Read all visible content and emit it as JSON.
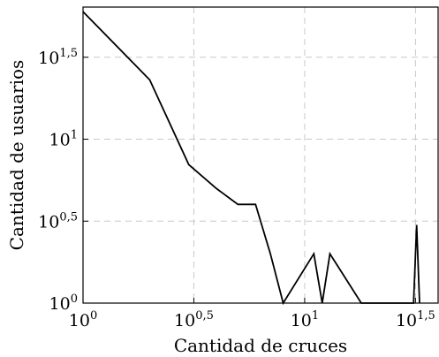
{
  "chart_data": {
    "type": "line",
    "xlabel": "Cantidad de cruces",
    "ylabel": "Cantidad de usuarios",
    "xscale": "log",
    "yscale": "log",
    "xlim": [
      1,
      40
    ],
    "ylim": [
      1,
      64
    ],
    "grid": true,
    "x_ticks": [
      {
        "value": 1,
        "base": "10",
        "exp": "0"
      },
      {
        "value": 3.162,
        "base": "10",
        "exp": "0,5"
      },
      {
        "value": 10,
        "base": "10",
        "exp": "1"
      },
      {
        "value": 31.62,
        "base": "10",
        "exp": "1,5"
      }
    ],
    "y_ticks": [
      {
        "value": 1,
        "base": "10",
        "exp": "0"
      },
      {
        "value": 3.162,
        "base": "10",
        "exp": "0,5"
      },
      {
        "value": 10,
        "base": "10",
        "exp": "1"
      },
      {
        "value": 31.62,
        "base": "10",
        "exp": "1,5"
      }
    ],
    "series": [
      {
        "color": "#000000",
        "x": [
          1,
          2,
          3,
          4,
          5,
          6,
          7,
          8,
          11,
          12,
          13,
          18,
          31,
          32,
          33
        ],
        "y": [
          60,
          23,
          7,
          5,
          4,
          4,
          2,
          1,
          2,
          1,
          2,
          1,
          1,
          3,
          1
        ]
      }
    ]
  }
}
